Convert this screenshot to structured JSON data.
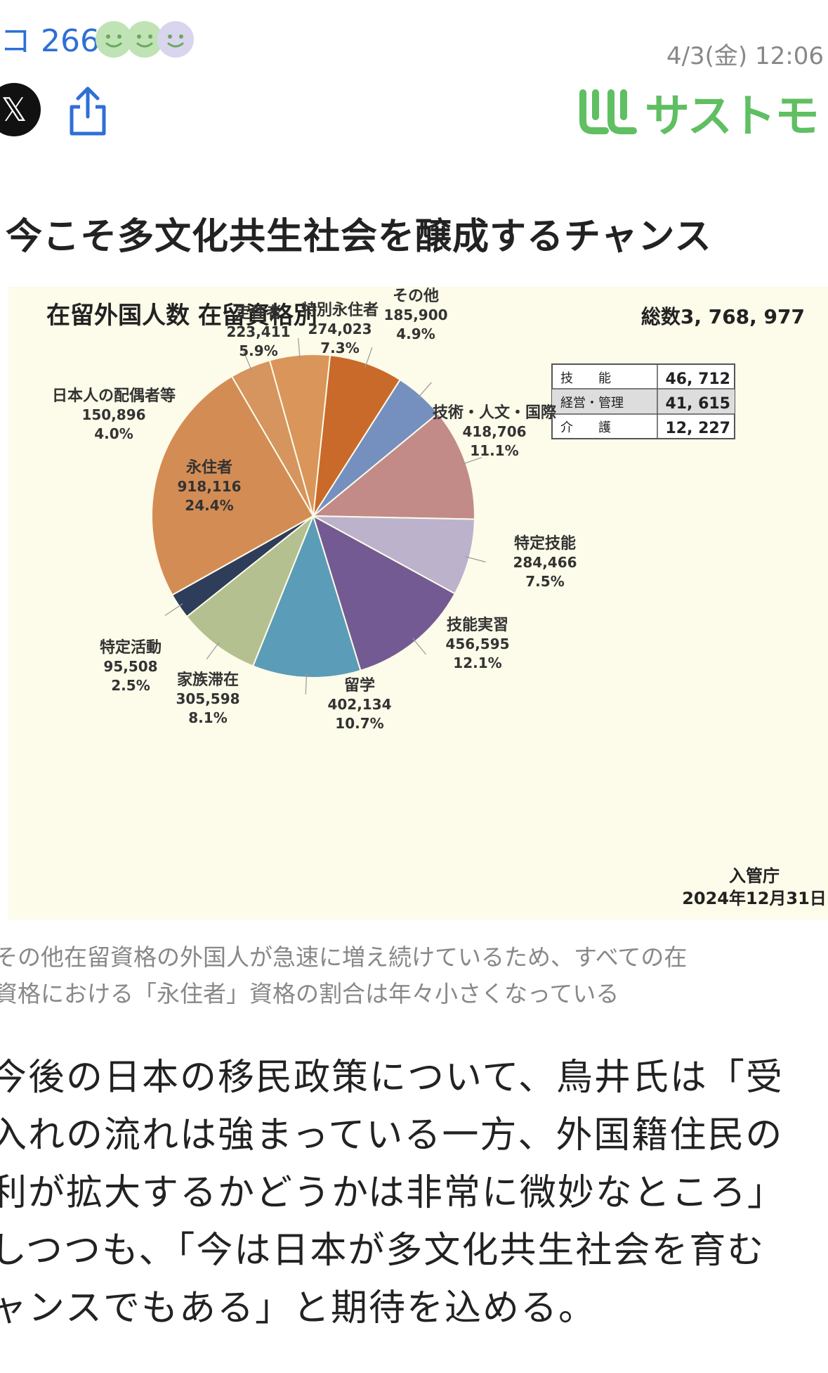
{
  "header": {
    "comment_count": "コ 266",
    "date": "4/3(金) 12:06",
    "logo_text": "サストモ",
    "reaction_colors": [
      "#bfe3b5",
      "#bfe3b5",
      "#d9d5ee"
    ]
  },
  "article": {
    "title": "今こそ多文化共生社会を醸成するチャンス",
    "caption_lines": [
      "その他在留資格の外国人が急速に増え続けているため、すべての在",
      "資格における「永住者」資格の割合は年々小さくなっている"
    ],
    "body_lines": [
      "今後の日本の移民政策について、鳥井氏は「受",
      "入れの流れは強まっている一方、外国籍住民の",
      "利が拡大するかどうかは非常に微妙なところ」",
      "しつつも、「今は日本が多文化共生社会を育む",
      "ャンスでもある」と期待を込める。"
    ]
  },
  "chart_data": {
    "type": "pie",
    "title": "在留外国人数 在留資格別",
    "total_label": "総数3, 768, 977",
    "source": "入管庁",
    "source_date": "2024年12月31日",
    "slices": [
      {
        "label": "特別永住者",
        "value": 274023,
        "percent": "7.3%",
        "value_text": "274,023",
        "color": "#c96a2b"
      },
      {
        "label": "その他",
        "value": 185900,
        "percent": "4.9%",
        "value_text": "185,900",
        "color": "#7590bf"
      },
      {
        "label": "技術・人文・国際",
        "value": 418706,
        "percent": "11.1%",
        "value_text": "418,706",
        "color": "#c28b88"
      },
      {
        "label": "特定技能",
        "value": 284466,
        "percent": "7.5%",
        "value_text": "284,466",
        "color": "#bdb2cc"
      },
      {
        "label": "技能実習",
        "value": 456595,
        "percent": "12.1%",
        "value_text": "456,595",
        "color": "#745a92"
      },
      {
        "label": "留学",
        "value": 402134,
        "percent": "10.7%",
        "value_text": "402,134",
        "color": "#5b9cb8"
      },
      {
        "label": "家族滞在",
        "value": 305598,
        "percent": "8.1%",
        "value_text": "305,598",
        "color": "#b4c08f"
      },
      {
        "label": "特定活動",
        "value": 95508,
        "percent": "2.5%",
        "value_text": "95,508",
        "color": "#2e3d5a"
      },
      {
        "label": "永住者",
        "value": 918116,
        "percent": "24.4%",
        "value_text": "918,116",
        "color": "#d48c55"
      },
      {
        "label": "日本人の配偶者等",
        "value": 150896,
        "percent": "4.0%",
        "value_text": "150,896",
        "color": "#d6955e"
      },
      {
        "label": "定住者",
        "value": 223411,
        "percent": "5.9%",
        "value_text": "223,411",
        "color": "#d9955a"
      }
    ],
    "inset_table": [
      {
        "label": "技　　能",
        "value": "46, 712"
      },
      {
        "label": "経営・管理",
        "value": "41, 615"
      },
      {
        "label": "介　　護",
        "value": "12, 227"
      }
    ]
  }
}
